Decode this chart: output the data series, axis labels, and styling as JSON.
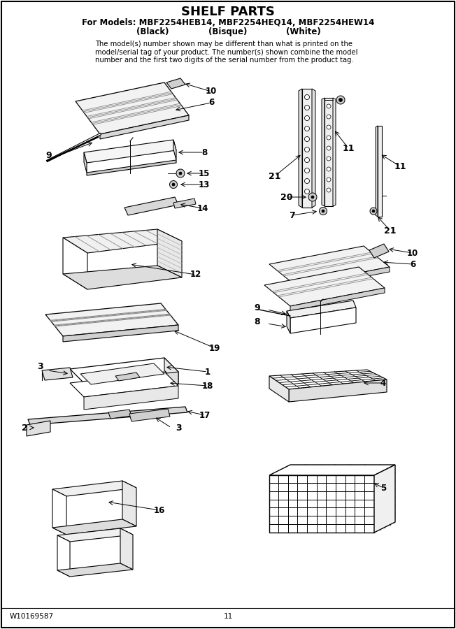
{
  "title": "SHELF PARTS",
  "subtitle_line1": "For Models: MBF2254HEB14, MBF2254HEQ14, MBF2254HEW14",
  "sub_black": "(Black)",
  "sub_bisque": "(Bisque)",
  "sub_white": "(White)",
  "footer_left": "W10169587",
  "footer_center": "11",
  "fig_width": 6.52,
  "fig_height": 9.0,
  "dpi": 100
}
